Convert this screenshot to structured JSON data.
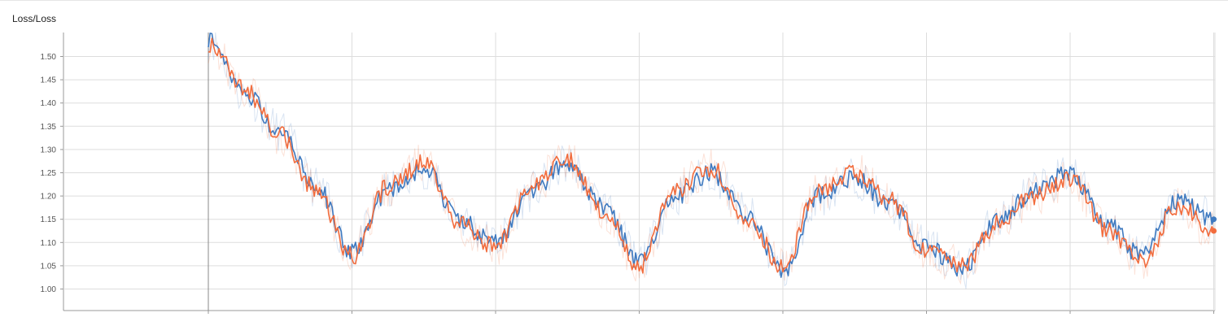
{
  "chart_title": "Loss/Loss",
  "colors": {
    "series_blue": "#3f7ac0",
    "series_orange": "#f26c3d",
    "grid": "#dddddd",
    "axis": "#999999"
  },
  "chart_data": {
    "type": "line",
    "title": "Loss/Loss",
    "xlabel": "",
    "ylabel": "",
    "ylim": [
      0.96,
      1.55
    ],
    "xlim": [
      0,
      8
    ],
    "y_ticks": [
      1.0,
      1.05,
      1.1,
      1.15,
      1.2,
      1.25,
      1.3,
      1.35,
      1.4,
      1.45,
      1.5
    ],
    "y_tick_labels": [
      "1.00",
      "1.05",
      "1.10",
      "1.15",
      "1.20",
      "1.25",
      "1.30",
      "1.35",
      "1.40",
      "1.45",
      "1.50"
    ],
    "x_gridlines": [
      1,
      2,
      3,
      4,
      5,
      6,
      7,
      8
    ],
    "grid": true,
    "series": [
      {
        "color": "#3f7ac0",
        "x": [
          1.0,
          1.25,
          1.5,
          1.75,
          2.0,
          2.25,
          2.5,
          2.75,
          3.0,
          3.25,
          3.5,
          3.75,
          4.0,
          4.25,
          4.5,
          4.75,
          5.0,
          5.25,
          5.5,
          5.75,
          6.0,
          6.25,
          6.5,
          6.75,
          7.0,
          7.25,
          7.5,
          7.75,
          8.0
        ],
        "y": [
          1.54,
          1.42,
          1.34,
          1.22,
          1.08,
          1.21,
          1.26,
          1.15,
          1.1,
          1.21,
          1.27,
          1.18,
          1.06,
          1.2,
          1.25,
          1.16,
          1.04,
          1.2,
          1.24,
          1.18,
          1.09,
          1.04,
          1.15,
          1.21,
          1.25,
          1.14,
          1.07,
          1.19,
          1.15
        ]
      },
      {
        "color": "#f26c3d",
        "x": [
          1.0,
          1.25,
          1.5,
          1.75,
          2.0,
          2.25,
          2.5,
          2.75,
          3.0,
          3.25,
          3.5,
          3.75,
          4.0,
          4.25,
          4.5,
          4.75,
          5.0,
          5.25,
          5.5,
          5.75,
          6.0,
          6.25,
          6.5,
          6.75,
          7.0,
          7.25,
          7.5,
          7.75,
          8.0
        ],
        "y": [
          1.53,
          1.43,
          1.33,
          1.21,
          1.07,
          1.22,
          1.27,
          1.14,
          1.09,
          1.22,
          1.28,
          1.17,
          1.05,
          1.21,
          1.26,
          1.15,
          1.05,
          1.21,
          1.25,
          1.19,
          1.08,
          1.05,
          1.14,
          1.2,
          1.24,
          1.13,
          1.06,
          1.18,
          1.125
        ]
      }
    ]
  }
}
